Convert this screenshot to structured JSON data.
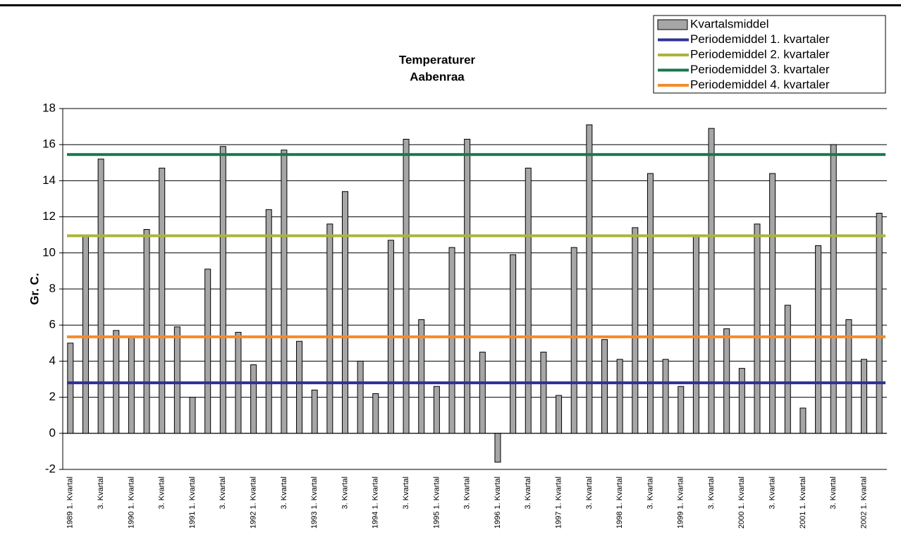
{
  "chart_data": {
    "type": "bar",
    "title": [
      "Temperaturer",
      "Aabenraa"
    ],
    "y_label": "Gr. C.",
    "categories": [
      "1989 1. Kvartal",
      null,
      "3. Kvartal",
      null,
      "1990 1. Kvartal",
      null,
      "3. Kvartal",
      null,
      "1991 1. Kvartal",
      null,
      "3. Kvartal",
      null,
      "1992 1. Kvartal",
      null,
      "3. Kvartal",
      null,
      "1993 1. Kvartal",
      null,
      "3. Kvartal",
      null,
      "1994 1. Kvartal",
      null,
      "3. Kvartal",
      null,
      "1995 1. Kvartal",
      null,
      "3. Kvartal",
      null,
      "1996 1. Kvartal",
      null,
      "3. Kvartal",
      null,
      "1997 1. Kvartal",
      null,
      "3. Kvartal",
      null,
      "1998 1. Kvartal",
      null,
      "3. Kvartal",
      null,
      "1999 1. Kvartal",
      null,
      "3. Kvartal",
      null,
      "2000 1. Kvartal",
      null,
      "3. Kvartal",
      null,
      "2001 1. Kvartal",
      null,
      "3. Kvartal",
      null,
      "2002 1. Kvartal",
      null
    ],
    "series": [
      {
        "name": "Kvartalsmiddel",
        "color": "#a6a6a6",
        "values": [
          5.0,
          10.9,
          15.2,
          5.7,
          5.4,
          11.3,
          14.7,
          5.9,
          2.0,
          9.1,
          15.9,
          5.6,
          3.8,
          12.4,
          15.7,
          5.1,
          2.4,
          11.6,
          13.4,
          4.0,
          2.2,
          10.7,
          16.3,
          6.3,
          2.6,
          10.3,
          16.3,
          4.5,
          -1.6,
          9.9,
          14.7,
          4.5,
          2.1,
          10.3,
          17.1,
          5.2,
          4.1,
          11.4,
          14.4,
          4.1,
          2.6,
          10.9,
          16.9,
          5.8,
          3.6,
          11.6,
          14.4,
          7.1,
          1.4,
          10.4,
          16.0,
          6.3,
          4.1,
          12.2
        ]
      }
    ],
    "reference_lines": [
      {
        "name": "Periodemiddel 1. kvartaler",
        "color": "#2e3192",
        "value": 2.8
      },
      {
        "name": "Periodemiddel 2. kvartaler",
        "color": "#a9b53a",
        "value": 10.95
      },
      {
        "name": "Periodemiddel 3. kvartaler",
        "color": "#17784a",
        "value": 15.45
      },
      {
        "name": "Periodemiddel 4. kvartaler",
        "color": "#f58a2a",
        "value": 5.35
      }
    ],
    "ylim": [
      -2,
      18
    ],
    "yticks": [
      -2,
      0,
      2,
      4,
      6,
      8,
      10,
      12,
      14,
      16,
      18
    ],
    "grid": true,
    "legend": "top-right"
  }
}
